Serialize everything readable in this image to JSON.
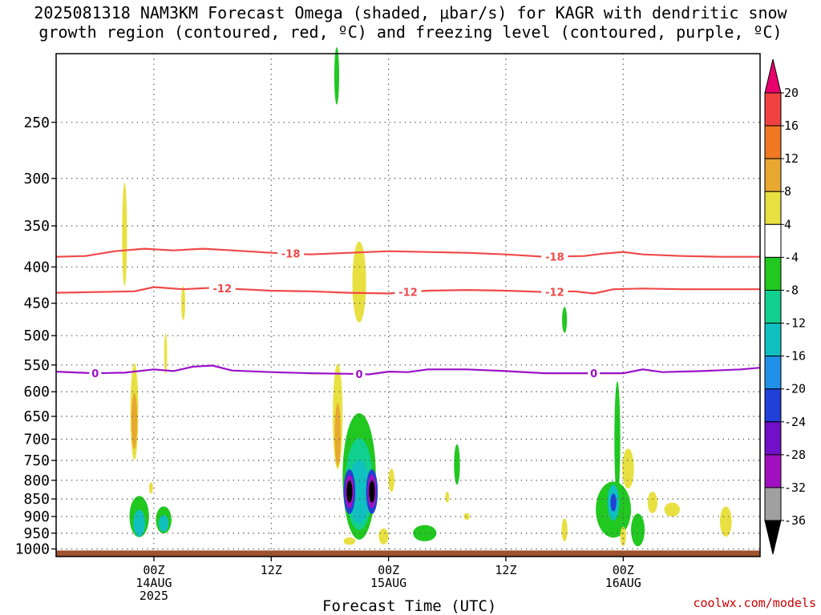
{
  "title_line1": "2025081318 NAM3KM Forecast Omega (shaded, μbar/s) for KAGR with dendritic snow",
  "title_line2": "growth region (contoured, red, ºC) and freezing level (contoured, purple, ºC)",
  "credit": "coolwx.com/models",
  "chart_data": {
    "type": "heatmap",
    "xlabel": "Forecast Time (UTC)",
    "x_range_hours": [
      -10,
      62
    ],
    "x_ticks": [
      {
        "hour": 0,
        "lines": [
          "00Z",
          "14AUG",
          "2025"
        ]
      },
      {
        "hour": 12,
        "lines": [
          "12Z"
        ]
      },
      {
        "hour": 24,
        "lines": [
          "00Z",
          "15AUG"
        ]
      },
      {
        "hour": 36,
        "lines": [
          "12Z"
        ]
      },
      {
        "hour": 48,
        "lines": [
          "00Z",
          "16AUG"
        ]
      }
    ],
    "y_axis": {
      "units": "hPa",
      "range": [
        200,
        1025
      ],
      "scale": "log",
      "reversed": true,
      "ticks": [
        250,
        300,
        350,
        400,
        450,
        500,
        550,
        600,
        650,
        700,
        750,
        800,
        850,
        900,
        950,
        1000
      ]
    },
    "colorbar": {
      "labels": [
        "20",
        "16",
        "12",
        "8",
        "4",
        "-4",
        "-8",
        "-12",
        "-16",
        "-20",
        "-24",
        "-28",
        "-32",
        "-36"
      ],
      "colors": [
        "#e8006e",
        "#f04040",
        "#f07820",
        "#e8a830",
        "#e8e040",
        "#ffffff",
        "#20c820",
        "#10d090",
        "#10c0c0",
        "#2090e8",
        "#2040d8",
        "#7010c8",
        "#a010c0",
        "#a0a0a0",
        "#000000"
      ]
    },
    "contours": [
      {
        "name": "-18",
        "color": "#f04848",
        "label_positions": [
          {
            "hour": 14,
            "label": "-18"
          },
          {
            "hour": 41,
            "label": "-18"
          }
        ],
        "points": [
          [
            -10,
            387
          ],
          [
            -7,
            386
          ],
          [
            -4,
            380
          ],
          [
            -1,
            377
          ],
          [
            2,
            379
          ],
          [
            5,
            377
          ],
          [
            8,
            379
          ],
          [
            12,
            382
          ],
          [
            16,
            384
          ],
          [
            20,
            382
          ],
          [
            24,
            380
          ],
          [
            28,
            381
          ],
          [
            32,
            382
          ],
          [
            36,
            384
          ],
          [
            40,
            387
          ],
          [
            44,
            386
          ],
          [
            46,
            383
          ],
          [
            48,
            381
          ],
          [
            50,
            384
          ],
          [
            54,
            386
          ],
          [
            58,
            387
          ],
          [
            62,
            387
          ]
        ]
      },
      {
        "name": "-12",
        "color": "#f04848",
        "label_positions": [
          {
            "hour": 7,
            "label": "-12"
          },
          {
            "hour": 26,
            "label": "-12"
          },
          {
            "hour": 41,
            "label": "-12"
          }
        ],
        "points": [
          [
            -10,
            435
          ],
          [
            -6,
            434
          ],
          [
            -2,
            433
          ],
          [
            0,
            427
          ],
          [
            3,
            430
          ],
          [
            6,
            428
          ],
          [
            9,
            430
          ],
          [
            12,
            432
          ],
          [
            16,
            433
          ],
          [
            20,
            435
          ],
          [
            24,
            436
          ],
          [
            28,
            432
          ],
          [
            32,
            431
          ],
          [
            36,
            432
          ],
          [
            40,
            434
          ],
          [
            43,
            433
          ],
          [
            45,
            436
          ],
          [
            47,
            430
          ],
          [
            50,
            429
          ],
          [
            54,
            430
          ],
          [
            58,
            430
          ],
          [
            62,
            430
          ]
        ]
      },
      {
        "name": "0",
        "color": "#9a10c8",
        "label_positions": [
          {
            "hour": -6,
            "label": "0"
          },
          {
            "hour": 21,
            "label": "0"
          },
          {
            "hour": 45,
            "label": "0"
          }
        ],
        "points": [
          [
            -10,
            562
          ],
          [
            -6,
            565
          ],
          [
            -3,
            564
          ],
          [
            0,
            558
          ],
          [
            2,
            561
          ],
          [
            4,
            553
          ],
          [
            6,
            551
          ],
          [
            8,
            560
          ],
          [
            12,
            563
          ],
          [
            16,
            565
          ],
          [
            20,
            566
          ],
          [
            22,
            567
          ],
          [
            24,
            562
          ],
          [
            26,
            563
          ],
          [
            28,
            558
          ],
          [
            32,
            558
          ],
          [
            36,
            561
          ],
          [
            40,
            565
          ],
          [
            44,
            565
          ],
          [
            48,
            565
          ],
          [
            50,
            558
          ],
          [
            52,
            563
          ],
          [
            56,
            561
          ],
          [
            60,
            558
          ],
          [
            62,
            555
          ]
        ]
      }
    ],
    "omega_blobs": [
      {
        "hour": -3.0,
        "p": 360,
        "rx": 0.25,
        "ry_hpa": 60,
        "color": "#e8e040"
      },
      {
        "hour": 3.0,
        "p": 450,
        "rx": 0.2,
        "ry_hpa": 25,
        "color": "#e8e040"
      },
      {
        "hour": 1.2,
        "p": 530,
        "rx": 0.15,
        "ry_hpa": 35,
        "color": "#e8e040"
      },
      {
        "hour": -2.0,
        "p": 640,
        "rx": 0.4,
        "ry_hpa": 100,
        "color": "#e8e040"
      },
      {
        "hour": -2.0,
        "p": 660,
        "rx": 0.3,
        "ry_hpa": 60,
        "color": "#e8a830"
      },
      {
        "hour": -0.3,
        "p": 820,
        "rx": 0.2,
        "ry_hpa": 15,
        "color": "#e8e040"
      },
      {
        "hour": -1.5,
        "p": 900,
        "rx": 1.0,
        "ry_hpa": 60,
        "color": "#20c820"
      },
      {
        "hour": -1.5,
        "p": 920,
        "rx": 0.6,
        "ry_hpa": 40,
        "color": "#10c0c0"
      },
      {
        "hour": 1.0,
        "p": 910,
        "rx": 0.8,
        "ry_hpa": 40,
        "color": "#20c820"
      },
      {
        "hour": 1.0,
        "p": 920,
        "rx": 0.5,
        "ry_hpa": 25,
        "color": "#10c0c0"
      },
      {
        "hour": 18.7,
        "p": 215,
        "rx": 0.25,
        "ry_hpa": 20,
        "color": "#20c820"
      },
      {
        "hour": 21.0,
        "p": 420,
        "rx": 0.7,
        "ry_hpa": 55,
        "color": "#e8e040"
      },
      {
        "hour": 18.8,
        "p": 650,
        "rx": 0.5,
        "ry_hpa": 110,
        "color": "#e8e040"
      },
      {
        "hour": 18.8,
        "p": 690,
        "rx": 0.3,
        "ry_hpa": 70,
        "color": "#e8a830"
      },
      {
        "hour": 21.0,
        "p": 790,
        "rx": 1.7,
        "ry_hpa": 160,
        "color": "#20c820"
      },
      {
        "hour": 21.0,
        "p": 810,
        "rx": 1.4,
        "ry_hpa": 120,
        "color": "#10d090"
      },
      {
        "hour": 21.0,
        "p": 830,
        "rx": 1.1,
        "ry_hpa": 85,
        "color": "#10c0c0"
      },
      {
        "hour": 20.0,
        "p": 830,
        "rx": 0.6,
        "ry_hpa": 60,
        "color": "#2040d8"
      },
      {
        "hour": 20.0,
        "p": 830,
        "rx": 0.45,
        "ry_hpa": 45,
        "color": "#a010c0"
      },
      {
        "hour": 20.0,
        "p": 830,
        "rx": 0.3,
        "ry_hpa": 30,
        "color": "#000000"
      },
      {
        "hour": 22.3,
        "p": 830,
        "rx": 0.6,
        "ry_hpa": 60,
        "color": "#2040d8"
      },
      {
        "hour": 22.3,
        "p": 830,
        "rx": 0.45,
        "ry_hpa": 45,
        "color": "#a010c0"
      },
      {
        "hour": 22.3,
        "p": 830,
        "rx": 0.3,
        "ry_hpa": 30,
        "color": "#000000"
      },
      {
        "hour": 24.3,
        "p": 800,
        "rx": 0.3,
        "ry_hpa": 30,
        "color": "#e8e040"
      },
      {
        "hour": 20.0,
        "p": 975,
        "rx": 0.6,
        "ry_hpa": 12,
        "color": "#e8e040"
      },
      {
        "hour": 23.5,
        "p": 960,
        "rx": 0.5,
        "ry_hpa": 25,
        "color": "#e8e040"
      },
      {
        "hour": 27.7,
        "p": 950,
        "rx": 1.2,
        "ry_hpa": 25,
        "color": "#20c820"
      },
      {
        "hour": 31.0,
        "p": 760,
        "rx": 0.3,
        "ry_hpa": 50,
        "color": "#20c820"
      },
      {
        "hour": 30.0,
        "p": 845,
        "rx": 0.2,
        "ry_hpa": 15,
        "color": "#e8e040"
      },
      {
        "hour": 32.0,
        "p": 900,
        "rx": 0.3,
        "ry_hpa": 10,
        "color": "#e8e040"
      },
      {
        "hour": 42.0,
        "p": 475,
        "rx": 0.25,
        "ry_hpa": 20,
        "color": "#20c820"
      },
      {
        "hour": 47.4,
        "p": 700,
        "rx": 0.3,
        "ry_hpa": 130,
        "color": "#20c820"
      },
      {
        "hour": 47.0,
        "p": 880,
        "rx": 1.8,
        "ry_hpa": 80,
        "color": "#20c820"
      },
      {
        "hour": 47.0,
        "p": 860,
        "rx": 0.6,
        "ry_hpa": 50,
        "color": "#10c0c0"
      },
      {
        "hour": 47.0,
        "p": 860,
        "rx": 0.3,
        "ry_hpa": 25,
        "color": "#2040d8"
      },
      {
        "hour": 48.5,
        "p": 770,
        "rx": 0.6,
        "ry_hpa": 50,
        "color": "#e8e040"
      },
      {
        "hour": 48.0,
        "p": 960,
        "rx": 0.3,
        "ry_hpa": 30,
        "color": "#e8e040"
      },
      {
        "hour": 49.5,
        "p": 940,
        "rx": 0.7,
        "ry_hpa": 50,
        "color": "#20c820"
      },
      {
        "hour": 51.0,
        "p": 860,
        "rx": 0.5,
        "ry_hpa": 30,
        "color": "#e8e040"
      },
      {
        "hour": 53.0,
        "p": 880,
        "rx": 0.8,
        "ry_hpa": 20,
        "color": "#e8e040"
      },
      {
        "hour": 58.5,
        "p": 915,
        "rx": 0.6,
        "ry_hpa": 45,
        "color": "#e8e040"
      },
      {
        "hour": 42.0,
        "p": 940,
        "rx": 0.3,
        "ry_hpa": 35,
        "color": "#e8e040"
      }
    ],
    "ground": {
      "color": "#a0522d",
      "p_top": 1005
    }
  }
}
